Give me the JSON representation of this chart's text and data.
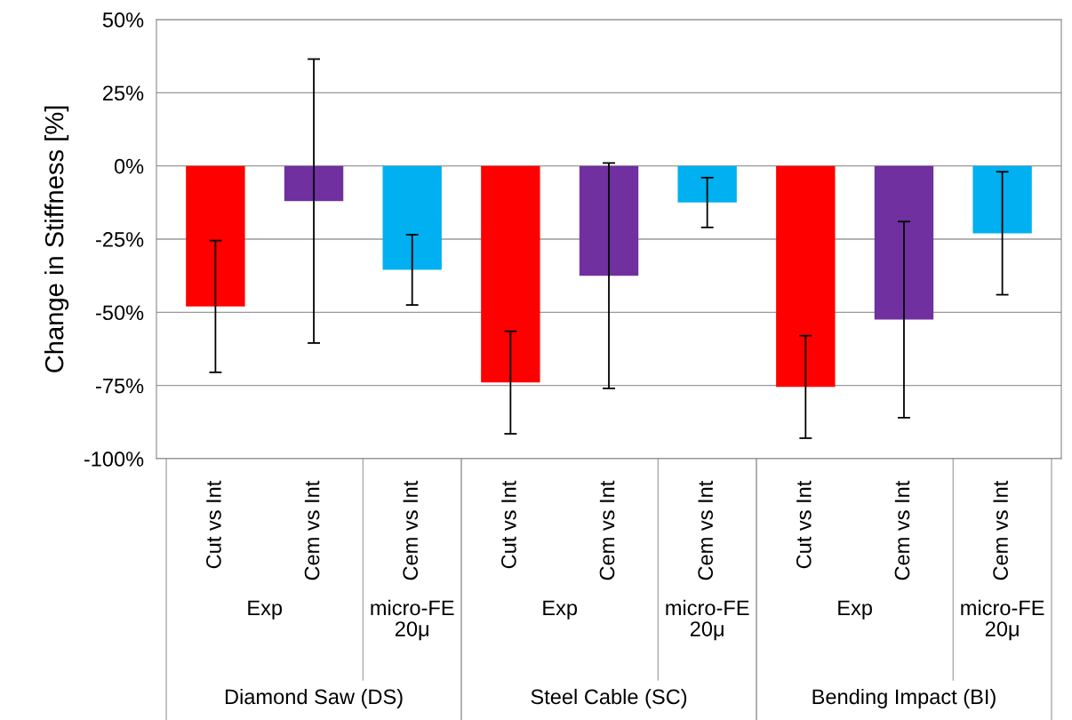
{
  "chart_data": {
    "type": "bar",
    "ylabel": "Change in Stiffness [%]",
    "categories": [
      "Cut vs Int",
      "Cem vs Int",
      "Cem vs Int",
      "Cut vs Int",
      "Cem vs Int",
      "Cem vs Int",
      "Cut vs Int",
      "Cem vs Int",
      "Cem vs Int"
    ],
    "values": [
      -48,
      -12,
      -35.5,
      -74,
      -37.5,
      -12.5,
      -75.5,
      -52.5,
      -23
    ],
    "errors": [
      22.5,
      48.5,
      12,
      17.5,
      38.5,
      8.5,
      17.5,
      33.5,
      21
    ],
    "colors": [
      "#ff0000",
      "#7030a0",
      "#00b0f0",
      "#ff0000",
      "#7030a0",
      "#00b0f0",
      "#ff0000",
      "#7030a0",
      "#00b0f0"
    ],
    "ylim": [
      -100,
      50
    ],
    "yticks": [
      {
        "value": -100,
        "label": "-100%"
      },
      {
        "value": -75,
        "label": "-75%"
      },
      {
        "value": -50,
        "label": "-50%"
      },
      {
        "value": -25,
        "label": "-25%"
      },
      {
        "value": 0,
        "label": "0%"
      },
      {
        "value": 25,
        "label": "25%"
      },
      {
        "value": 50,
        "label": "50%"
      }
    ],
    "grid": "y",
    "annotations": [
      "Exp",
      "micro-FE\n20μ",
      "Diamond Saw (DS)",
      "Exp",
      "micro-FE\n20μ",
      "Steel Cable (SC)",
      "Exp",
      "micro-FE\n20μ",
      "Bending Impact (BI)"
    ]
  }
}
